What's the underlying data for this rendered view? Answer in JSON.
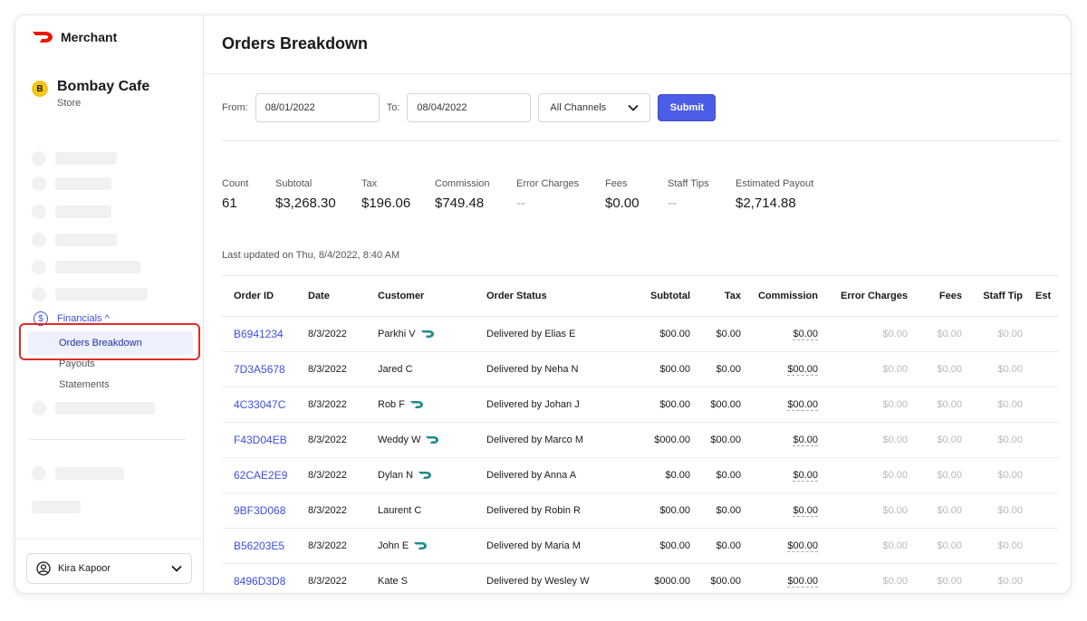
{
  "brand": {
    "name": "Merchant",
    "accent": "#eb1700"
  },
  "store": {
    "badge": "B",
    "name": "Bombay Cafe",
    "type": "Store"
  },
  "nav": {
    "financials_label": "Financials ^",
    "sub_items": [
      "Orders Breakdown",
      "Payouts",
      "Statements"
    ],
    "active": "Orders Breakdown"
  },
  "user": {
    "name": "Kira Kapoor"
  },
  "page": {
    "title": "Orders Breakdown"
  },
  "filters": {
    "from_label": "From:",
    "from_value": "08/01/2022",
    "to_label": "To:",
    "to_value": "08/04/2022",
    "channel": "All Channels",
    "submit": "Submit"
  },
  "stats": [
    {
      "label": "Count",
      "value": "61"
    },
    {
      "label": "Subtotal",
      "value": "$3,268.30"
    },
    {
      "label": "Tax",
      "value": "$196.06"
    },
    {
      "label": "Commission",
      "value": "$749.48"
    },
    {
      "label": "Error Charges",
      "value": "--"
    },
    {
      "label": "Fees",
      "value": "$0.00"
    },
    {
      "label": "Staff Tips",
      "value": "--"
    },
    {
      "label": "Estimated Payout",
      "value": "$2,714.88"
    }
  ],
  "last_updated": "Last updated on Thu, 8/4/2022, 8:40 AM",
  "table": {
    "headers": [
      "Order ID",
      "Date",
      "Customer",
      "Order Status",
      "Subtotal",
      "Tax",
      "Commission",
      "Error Charges",
      "Fees",
      "Staff Tip",
      "Est"
    ],
    "rows": [
      {
        "id": "B6941234",
        "date": "8/3/2022",
        "customer": "Parkhi V",
        "dash": true,
        "status": "Delivered by Elias E",
        "subtotal": "$00.00",
        "tax": "$0.00",
        "commission": "$0.00",
        "error": "$0.00",
        "fees": "$0.00",
        "tip": "$0.00"
      },
      {
        "id": "7D3A5678",
        "date": "8/3/2022",
        "customer": "Jared C",
        "dash": false,
        "status": "Delivered by Neha N",
        "subtotal": "$00.00",
        "tax": "$0.00",
        "commission": "$00.00",
        "error": "$0.00",
        "fees": "$0.00",
        "tip": "$0.00"
      },
      {
        "id": "4C33047C",
        "date": "8/3/2022",
        "customer": "Rob F",
        "dash": true,
        "status": "Delivered by Johan J",
        "subtotal": "$00.00",
        "tax": "$00.00",
        "commission": "$00.00",
        "error": "$0.00",
        "fees": "$0.00",
        "tip": "$0.00"
      },
      {
        "id": "F43D04EB",
        "date": "8/3/2022",
        "customer": "Weddy W",
        "dash": true,
        "status": "Delivered by Marco M",
        "subtotal": "$000.00",
        "tax": "$00.00",
        "commission": "$0.00",
        "error": "$0.00",
        "fees": "$0.00",
        "tip": "$0.00"
      },
      {
        "id": "62CAE2E9",
        "date": "8/3/2022",
        "customer": "Dylan N",
        "dash": true,
        "status": "Delivered by Anna A",
        "subtotal": "$0.00",
        "tax": "$0.00",
        "commission": "$0.00",
        "error": "$0.00",
        "fees": "$0.00",
        "tip": "$0.00"
      },
      {
        "id": "9BF3D068",
        "date": "8/3/2022",
        "customer": "Laurent C",
        "dash": false,
        "status": "Delivered by Robin R",
        "subtotal": "$00.00",
        "tax": "$0.00",
        "commission": "$0.00",
        "error": "$0.00",
        "fees": "$0.00",
        "tip": "$0.00"
      },
      {
        "id": "B56203E5",
        "date": "8/3/2022",
        "customer": "John E",
        "dash": true,
        "status": "Delivered by Maria M",
        "subtotal": "$00.00",
        "tax": "$0.00",
        "commission": "$00.00",
        "error": "$0.00",
        "fees": "$0.00",
        "tip": "$0.00"
      },
      {
        "id": "8496D3D8",
        "date": "8/3/2022",
        "customer": "Kate S",
        "dash": false,
        "status": "Delivered by Wesley W",
        "subtotal": "$000.00",
        "tax": "$00.00",
        "commission": "$00.00",
        "error": "$0.00",
        "fees": "$0.00",
        "tip": "$0.00"
      }
    ]
  }
}
